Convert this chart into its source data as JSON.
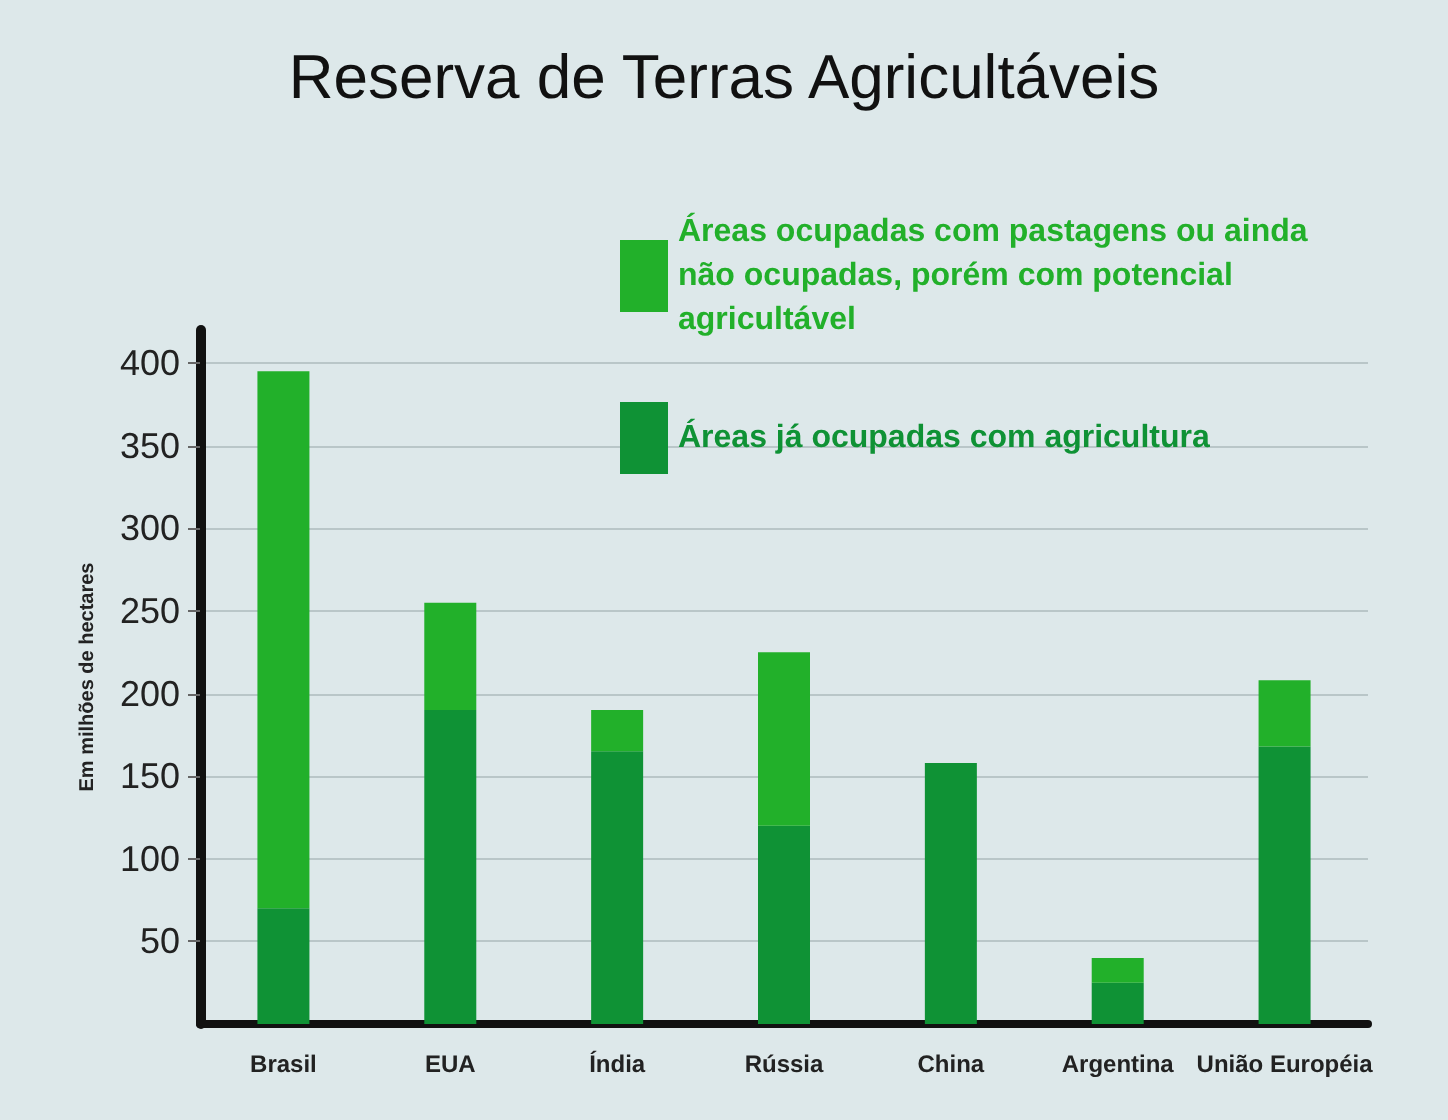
{
  "chart_data": {
    "type": "bar",
    "title": "Reserva de Terras Agricultáveis",
    "ylabel": "Em milhões de hectares",
    "categories": [
      "Brasil",
      "EUA",
      "Índia",
      "Rússia",
      "China",
      "Argentina",
      "União Européia"
    ],
    "stacked": true,
    "series": [
      {
        "name": "Áreas já ocupadas com agricultura",
        "color": "#0f9235",
        "values": [
          70,
          190,
          165,
          120,
          158,
          25,
          168
        ]
      },
      {
        "name": "Áreas ocupadas com pastagens ou ainda não ocupadas, porém com potencial agricultável",
        "color": "#22b02a",
        "values": [
          325,
          65,
          25,
          105,
          0,
          15,
          40
        ]
      }
    ],
    "ylim": [
      0,
      420
    ],
    "yticks": [
      50,
      100,
      150,
      200,
      250,
      300,
      350,
      400
    ],
    "grid": "y",
    "legend": "top right"
  }
}
